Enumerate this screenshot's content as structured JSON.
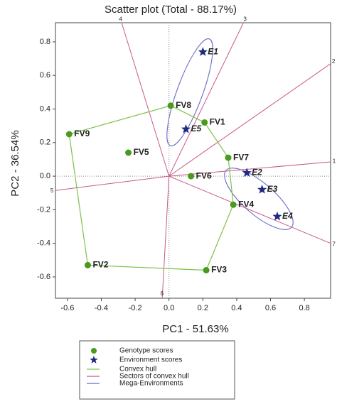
{
  "chart_data": {
    "type": "scatter",
    "title": "Scatter plot (Total - 88.17%)",
    "x_label": "PC1 - 51.63%",
    "y_label": "PC2 - 36.54%",
    "xlim": [
      -0.671,
      0.955
    ],
    "ylim": [
      -0.727,
      0.914
    ],
    "xticks": [
      -0.6,
      -0.4,
      -0.2,
      {
        "value": 0,
        "label": "0.0"
      },
      0.2,
      0.4,
      0.6,
      0.8
    ],
    "yticks": [
      -0.6,
      -0.4,
      -0.2,
      {
        "value": 0,
        "label": "0.0"
      },
      0.2,
      0.4,
      0.6,
      0.8
    ],
    "series": [
      {
        "name": "Genotype scores",
        "color": "#4a9a1e",
        "marker": "circle",
        "labels": [
          "FV8",
          "FV1",
          "FV9",
          "FV5",
          "FV7",
          "FV6",
          "FV4",
          "FV2",
          "FV3"
        ],
        "x": [
          0.01,
          0.21,
          -0.59,
          -0.24,
          0.35,
          0.13,
          0.38,
          -0.48,
          0.22
        ],
        "values": [
          0.42,
          0.32,
          0.25,
          0.14,
          0.11,
          0.0,
          -0.17,
          -0.53,
          -0.56
        ]
      },
      {
        "name": "Environment scores",
        "color": "#1f2a80",
        "marker": "star",
        "labels": [
          "E1",
          "E5",
          "E2",
          "E3",
          "E4"
        ],
        "x": [
          0.2,
          0.1,
          0.46,
          0.55,
          0.64
        ],
        "values": [
          0.74,
          0.28,
          0.02,
          -0.08,
          -0.24
        ]
      }
    ],
    "hull": {
      "name": "Convex hull",
      "color": "#7cc24a"
    },
    "sectors": {
      "name": "Sectors of convex hull",
      "color": "#c8588a",
      "rays": [
        {
          "label": "1",
          "x": 0.955,
          "y": 0.085
        },
        {
          "label": "2",
          "x": 0.955,
          "y": 0.67
        },
        {
          "label": "3",
          "x": 0.44,
          "y": 0.914
        },
        {
          "label": "4",
          "x": -0.28,
          "y": 0.914
        },
        {
          "label": "5",
          "x": -0.671,
          "y": -0.085
        },
        {
          "label": "6",
          "x": -0.04,
          "y": -0.727
        },
        {
          "label": "7",
          "x": 0.955,
          "y": -0.4
        }
      ]
    },
    "mega_environments": {
      "name": "Mega-Environments",
      "color": "#6a6ac8"
    }
  }
}
